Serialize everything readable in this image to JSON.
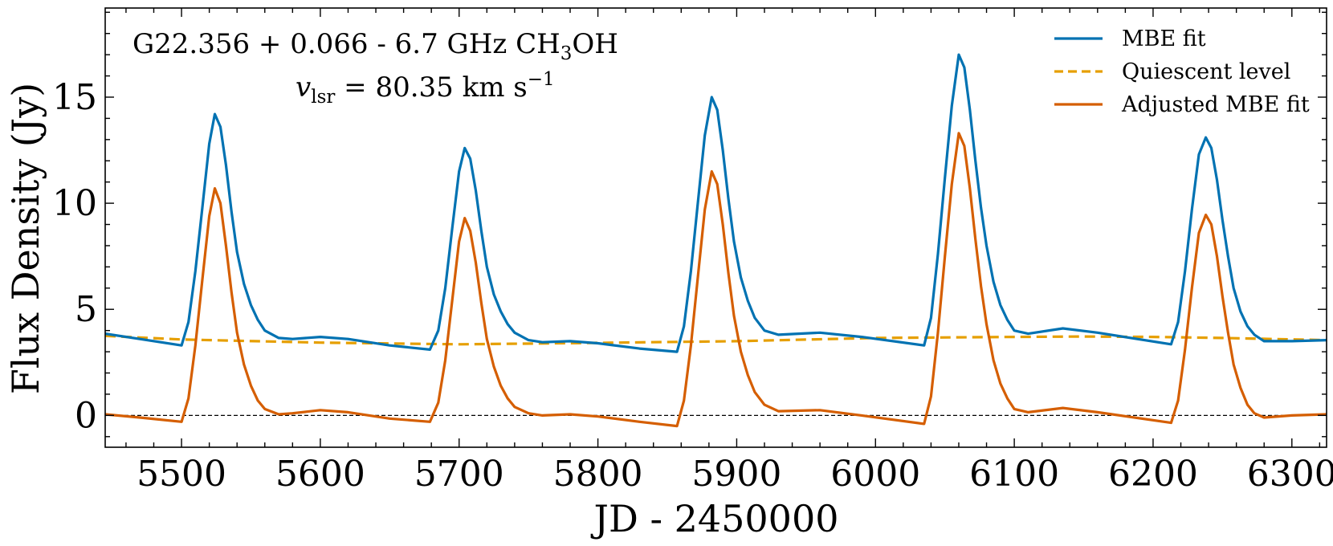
{
  "chart_data": {
    "type": "line",
    "title_line1_main": "G22.356 + 0.066 - 6.7 GHz CH",
    "title_line1_sub": "3",
    "title_line1_tail": "OH",
    "title_line2_var": "v",
    "title_line2_sub": "lsr",
    "title_line2_value": " = 80.35 km s",
    "title_line2_sup": "−1",
    "xlabel": "JD - 2450000",
    "ylabel": "Flux Density (Jy)",
    "xlim": [
      5445,
      6325
    ],
    "ylim": [
      -1.5,
      19.2
    ],
    "xticks": [
      5500,
      5600,
      5700,
      5800,
      5900,
      6000,
      6100,
      6200,
      6300
    ],
    "xtick_labels": [
      "5500",
      "5600",
      "5700",
      "5800",
      "5900",
      "6000",
      "6100",
      "6200",
      "6300"
    ],
    "yticks": [
      0,
      5,
      10,
      15
    ],
    "ytick_labels": [
      "0",
      "5",
      "10",
      "15"
    ],
    "zero_line": true,
    "legend_position": "top-right",
    "grid": false,
    "series": [
      {
        "name": "MBE fit",
        "color": "#0072B2",
        "style": "solid",
        "x": [
          5445,
          5470,
          5500,
          5505,
          5510,
          5515,
          5520,
          5524,
          5528,
          5532,
          5536,
          5540,
          5545,
          5550,
          5555,
          5560,
          5570,
          5580,
          5600,
          5620,
          5650,
          5679,
          5685,
          5690,
          5695,
          5700,
          5704,
          5708,
          5712,
          5716,
          5720,
          5725,
          5730,
          5735,
          5740,
          5750,
          5760,
          5780,
          5800,
          5830,
          5857,
          5862,
          5867,
          5872,
          5877,
          5882,
          5886,
          5890,
          5894,
          5898,
          5903,
          5908,
          5913,
          5920,
          5930,
          5960,
          5990,
          6035,
          6040,
          6045,
          6050,
          6055,
          6060,
          6064,
          6068,
          6072,
          6076,
          6080,
          6085,
          6090,
          6095,
          6100,
          6110,
          6135,
          6160,
          6213,
          6218,
          6223,
          6228,
          6233,
          6238,
          6242,
          6246,
          6250,
          6254,
          6258,
          6263,
          6268,
          6273,
          6280,
          6300,
          6325
        ],
        "y": [
          3.85,
          3.6,
          3.3,
          4.4,
          6.8,
          9.8,
          12.8,
          14.2,
          13.6,
          11.8,
          9.6,
          7.7,
          6.2,
          5.2,
          4.5,
          4.0,
          3.65,
          3.6,
          3.7,
          3.6,
          3.3,
          3.1,
          4.0,
          6.0,
          8.8,
          11.5,
          12.6,
          12.1,
          10.6,
          8.7,
          7.0,
          5.7,
          4.9,
          4.3,
          3.9,
          3.55,
          3.45,
          3.5,
          3.4,
          3.15,
          3.0,
          4.2,
          6.8,
          10.0,
          13.2,
          15.0,
          14.4,
          12.5,
          10.2,
          8.2,
          6.5,
          5.4,
          4.6,
          4.0,
          3.8,
          3.9,
          3.7,
          3.3,
          4.6,
          7.6,
          11.2,
          14.6,
          17.0,
          16.4,
          14.4,
          12.0,
          9.8,
          8.0,
          6.3,
          5.2,
          4.5,
          4.0,
          3.85,
          4.1,
          3.9,
          3.35,
          4.4,
          6.8,
          9.7,
          12.3,
          13.1,
          12.6,
          11.1,
          9.2,
          7.5,
          6.0,
          4.9,
          4.2,
          3.8,
          3.5,
          3.5,
          3.55
        ]
      },
      {
        "name": "Quiescent level",
        "color": "#E69F00",
        "style": "dashed",
        "x": [
          5445,
          5500,
          5600,
          5700,
          5800,
          5900,
          6000,
          6100,
          6150,
          6200,
          6250,
          6325
        ],
        "y": [
          3.75,
          3.58,
          3.43,
          3.35,
          3.42,
          3.5,
          3.65,
          3.7,
          3.72,
          3.7,
          3.65,
          3.55
        ]
      },
      {
        "name": "Adjusted MBE fit",
        "color": "#D55E00",
        "style": "solid",
        "x": [
          5445,
          5470,
          5500,
          5505,
          5510,
          5515,
          5520,
          5524,
          5528,
          5532,
          5536,
          5540,
          5545,
          5550,
          5555,
          5560,
          5570,
          5580,
          5600,
          5620,
          5650,
          5679,
          5685,
          5690,
          5695,
          5700,
          5704,
          5708,
          5712,
          5716,
          5720,
          5725,
          5730,
          5735,
          5740,
          5750,
          5760,
          5780,
          5800,
          5830,
          5857,
          5862,
          5867,
          5872,
          5877,
          5882,
          5886,
          5890,
          5894,
          5898,
          5903,
          5908,
          5913,
          5920,
          5930,
          5960,
          5990,
          6035,
          6040,
          6045,
          6050,
          6055,
          6060,
          6064,
          6068,
          6072,
          6076,
          6080,
          6085,
          6090,
          6095,
          6100,
          6110,
          6135,
          6160,
          6213,
          6218,
          6223,
          6228,
          6233,
          6238,
          6242,
          6246,
          6250,
          6254,
          6258,
          6263,
          6268,
          6273,
          6280,
          6300,
          6325
        ],
        "y": [
          0.05,
          -0.1,
          -0.3,
          0.8,
          3.3,
          6.4,
          9.4,
          10.7,
          10.0,
          8.0,
          5.8,
          3.9,
          2.4,
          1.4,
          0.7,
          0.3,
          0.05,
          0.1,
          0.25,
          0.15,
          -0.15,
          -0.3,
          0.6,
          2.6,
          5.4,
          8.2,
          9.3,
          8.7,
          7.2,
          5.3,
          3.6,
          2.3,
          1.4,
          0.8,
          0.4,
          0.1,
          0.0,
          0.05,
          -0.05,
          -0.3,
          -0.5,
          0.7,
          3.3,
          6.5,
          9.7,
          11.5,
          10.9,
          9.0,
          6.7,
          4.7,
          3.0,
          1.9,
          1.1,
          0.5,
          0.2,
          0.25,
          0.0,
          -0.4,
          0.9,
          3.9,
          7.5,
          10.9,
          13.3,
          12.7,
          10.7,
          8.3,
          6.1,
          4.3,
          2.6,
          1.5,
          0.8,
          0.3,
          0.15,
          0.35,
          0.15,
          -0.35,
          0.7,
          3.1,
          6.0,
          8.6,
          9.45,
          9.0,
          7.5,
          5.6,
          3.9,
          2.4,
          1.3,
          0.5,
          0.1,
          -0.1,
          0.0,
          0.05
        ]
      }
    ]
  }
}
